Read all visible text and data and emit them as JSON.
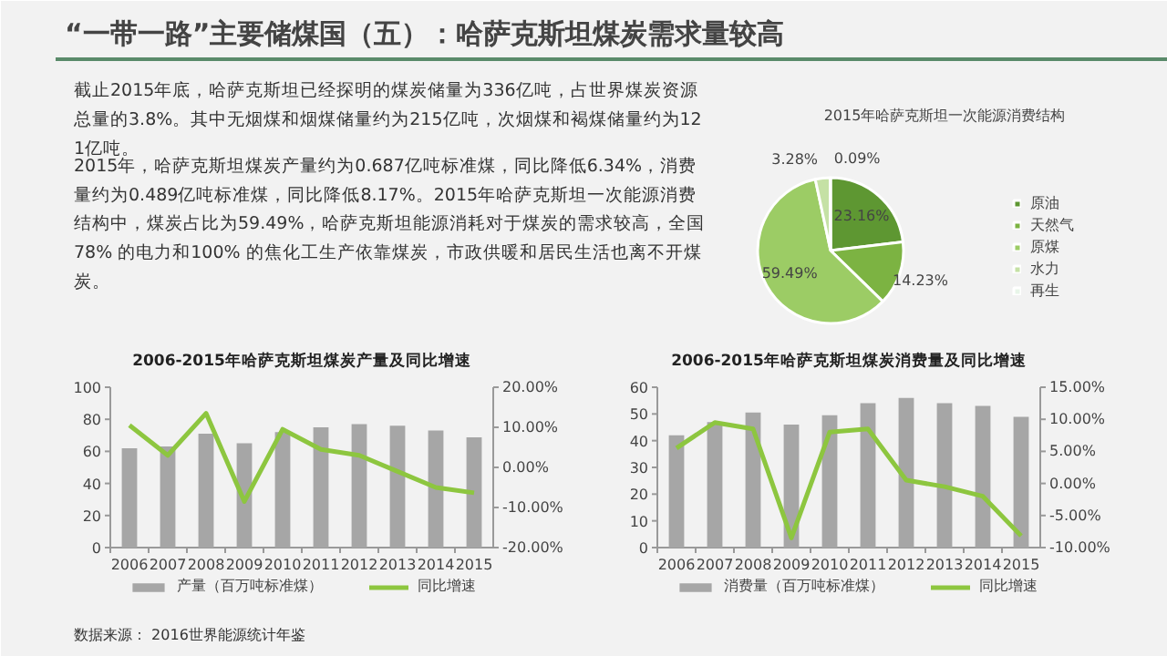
{
  "chart_data": [
    {
      "type": "other",
      "title": "“一带一路”主要储煤国（五）：哈萨克斯坦煤炭需求量较高",
      "annotations": [
        "截止2015年底，哈萨克斯坦已经探明的煤炭储量为336亿吨，占世界煤炭资源总量的3.8%。其中无烟煤和烟煤储量约为215亿吨，次烟煤和褐煤储量约为121亿吨。",
        "2015年，哈萨克斯坦煤炭产量约为0.687亿吨标准煤，同比降低6.34%，消费量约为0.489亿吨标准煤，同比降低8.17%。2015年哈萨克斯坦一次能源消费结构中，煤炭占比为59.49%，哈萨克斯坦能源消耗对于煤炭的需求较高，全国78% 的电力和100% 的焦化工生产依靠煤炭，市政供暖和居民生活也离不开煤炭。",
        "数据来源： 2016世界能源统计年鉴"
      ]
    },
    {
      "type": "pie",
      "title": "2015年哈萨克斯坦一次能源消费结构",
      "categories": [
        "原油",
        "天然气",
        "原煤",
        "水力",
        "再生"
      ],
      "values": [
        23.16,
        14.23,
        59.49,
        3.28,
        0.09
      ],
      "value_labels": [
        "23.16%",
        "14.23%",
        "59.49%",
        "3.28%",
        "0.09%"
      ],
      "colors": [
        "#5e9732",
        "#7cb342",
        "#9ccc65",
        "#c5e1a5",
        "#e8f5e9"
      ],
      "legend": "right"
    },
    {
      "type": "bar",
      "title": "2006-2015年哈萨克斯坦煤炭产量及同比增速",
      "categories": [
        "2006",
        "2007",
        "2008",
        "2009",
        "2010",
        "2011",
        "2012",
        "2013",
        "2014",
        "2015"
      ],
      "ylim": [
        0,
        100
      ],
      "yticks": [
        0,
        20,
        40,
        60,
        80,
        100
      ],
      "y2lim": [
        -20,
        20
      ],
      "y2ticks": [
        {
          "value": -20,
          "label": "-20.00%"
        },
        {
          "value": -10,
          "label": "-10.00%"
        },
        {
          "value": 0,
          "label": "0.00%"
        },
        {
          "value": 10,
          "label": "10.00%"
        },
        {
          "value": 20,
          "label": "20.00%"
        }
      ],
      "legend": "bottom",
      "series": [
        {
          "name": "产量（百万吨标准煤）",
          "type": "bar",
          "color": "#a6a6a6",
          "values": [
            62,
            63,
            71,
            65,
            72,
            75,
            77,
            76,
            73,
            68.7
          ]
        },
        {
          "name": "同比增速",
          "type": "line",
          "axis": "y2",
          "color": "#8dc63f",
          "values": [
            10.5,
            3,
            13.5,
            -8.5,
            9.5,
            4.5,
            3,
            -1,
            -5,
            -6.34
          ]
        }
      ]
    },
    {
      "type": "bar",
      "title": "2006-2015年哈萨克斯坦煤炭消费量及同比增速",
      "categories": [
        "2006",
        "2007",
        "2008",
        "2009",
        "2010",
        "2011",
        "2012",
        "2013",
        "2014",
        "2015"
      ],
      "ylim": [
        0,
        60
      ],
      "yticks": [
        0,
        10,
        20,
        30,
        40,
        50,
        60
      ],
      "y2lim": [
        -10,
        15
      ],
      "y2ticks": [
        {
          "value": -10,
          "label": "-10.00%"
        },
        {
          "value": -5,
          "label": "-5.00%"
        },
        {
          "value": 0,
          "label": "0.00%"
        },
        {
          "value": 5,
          "label": "5.00%"
        },
        {
          "value": 10,
          "label": "10.00%"
        },
        {
          "value": 15,
          "label": "15.00%"
        }
      ],
      "legend": "bottom",
      "series": [
        {
          "name": "消费量（百万吨标准煤）",
          "type": "bar",
          "color": "#a6a6a6",
          "values": [
            42,
            47,
            50.5,
            46,
            49.5,
            54,
            56,
            54,
            53,
            48.9
          ]
        },
        {
          "name": "同比增速",
          "type": "line",
          "axis": "y2",
          "color": "#8dc63f",
          "values": [
            5.5,
            9.5,
            8.5,
            -8.5,
            8,
            8.5,
            0.5,
            -0.5,
            -2,
            -8.17
          ]
        }
      ]
    }
  ]
}
